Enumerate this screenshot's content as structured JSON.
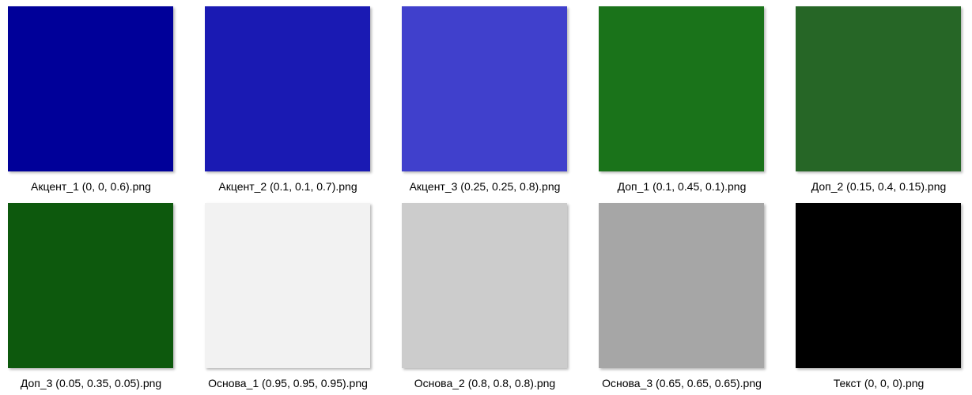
{
  "files": [
    {
      "name": "Акцент_1 (0, 0, 0.6).png",
      "color": "#000099"
    },
    {
      "name": "Акцент_2 (0.1, 0.1, 0.7).png",
      "color": "#1a1ab3"
    },
    {
      "name": "Акцент_3 (0.25, 0.25, 0.8).png",
      "color": "#4040cc"
    },
    {
      "name": "Доп_1 (0.1, 0.45, 0.1).png",
      "color": "#1a731a"
    },
    {
      "name": "Доп_2 (0.15, 0.4, 0.15).png",
      "color": "#266626"
    },
    {
      "name": "Доп_3 (0.05, 0.35, 0.05).png",
      "color": "#0d590d"
    },
    {
      "name": "Основа_1 (0.95, 0.95, 0.95).png",
      "color": "#f2f2f2"
    },
    {
      "name": "Основа_2 (0.8, 0.8, 0.8).png",
      "color": "#cccccc"
    },
    {
      "name": "Основа_3 (0.65, 0.65, 0.65).png",
      "color": "#a6a6a6"
    },
    {
      "name": "Текст (0, 0, 0).png",
      "color": "#000000"
    }
  ]
}
